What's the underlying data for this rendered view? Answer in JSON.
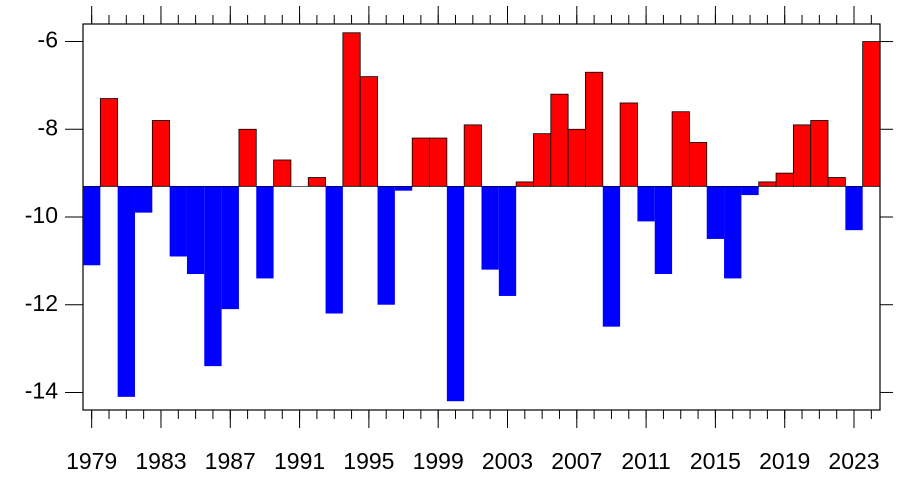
{
  "chart_data": {
    "type": "bar",
    "x": [
      1979,
      1980,
      1981,
      1982,
      1983,
      1984,
      1985,
      1986,
      1987,
      1988,
      1989,
      1990,
      1991,
      1992,
      1993,
      1994,
      1995,
      1996,
      1997,
      1998,
      1999,
      2000,
      2001,
      2002,
      2003,
      2004,
      2005,
      2006,
      2007,
      2008,
      2009,
      2010,
      2011,
      2012,
      2013,
      2014,
      2015,
      2016,
      2017,
      2018,
      2019,
      2020,
      2021,
      2022,
      2023,
      2024
    ],
    "values": [
      -11.1,
      -7.3,
      -14.1,
      -9.9,
      -7.8,
      -10.9,
      -11.3,
      -13.4,
      -12.1,
      -8.0,
      -11.4,
      -8.7,
      -9.3,
      -9.1,
      -12.2,
      -5.8,
      -6.8,
      -12.0,
      -9.4,
      -8.2,
      -8.2,
      -14.2,
      -7.9,
      -11.2,
      -11.8,
      -9.2,
      -8.1,
      -7.2,
      -8.0,
      -6.7,
      -12.5,
      -7.4,
      -10.1,
      -11.3,
      -7.6,
      -8.3,
      -10.5,
      -11.4,
      -9.5,
      -9.2,
      -9.0,
      -7.9,
      -7.8,
      -9.1,
      -10.3,
      -6.0
    ],
    "baseline": -9.3,
    "above_color": "#ff0000",
    "below_color": "#0000ff",
    "xlim": [
      1978.5,
      2024.5
    ],
    "xticks": [
      1979,
      1983,
      1987,
      1991,
      1995,
      1999,
      2003,
      2007,
      2011,
      2015,
      2019,
      2023
    ],
    "ylim": [
      -14.4,
      -5.6
    ],
    "yticks": [
      -14,
      -12,
      -10,
      -8,
      -6
    ]
  }
}
